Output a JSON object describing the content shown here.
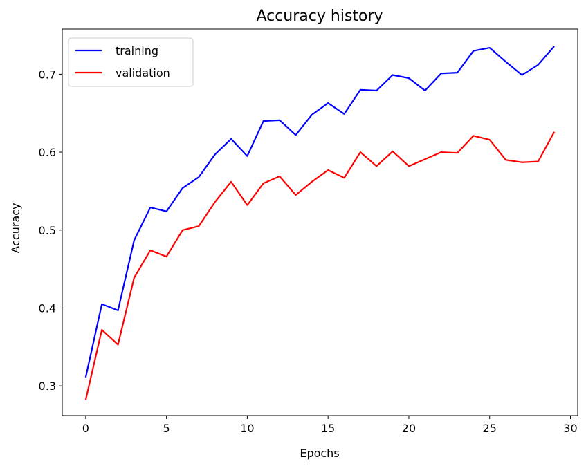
{
  "chart_data": {
    "type": "line",
    "title": "Accuracy history",
    "xlabel": "Epochs",
    "ylabel": "Accuracy",
    "xlim": [
      -1.45,
      30.45
    ],
    "ylim": [
      0.262,
      0.758
    ],
    "xticks": [
      0,
      5,
      10,
      15,
      20,
      25,
      30
    ],
    "yticks": [
      0.3,
      0.4,
      0.5,
      0.6,
      0.7
    ],
    "ytick_labels": [
      "0.3",
      "0.4",
      "0.5",
      "0.6",
      "0.7"
    ],
    "grid": false,
    "legend_position": "top-left",
    "x": [
      0,
      1,
      2,
      3,
      4,
      5,
      6,
      7,
      8,
      9,
      10,
      11,
      12,
      13,
      14,
      15,
      16,
      17,
      18,
      19,
      20,
      21,
      22,
      23,
      24,
      25,
      26,
      27,
      28,
      29
    ],
    "series": [
      {
        "name": "training",
        "color": "#0000ff",
        "values": [
          0.311,
          0.405,
          0.397,
          0.487,
          0.529,
          0.524,
          0.554,
          0.568,
          0.597,
          0.617,
          0.595,
          0.64,
          0.641,
          0.622,
          0.648,
          0.663,
          0.649,
          0.68,
          0.679,
          0.699,
          0.695,
          0.679,
          0.701,
          0.702,
          0.73,
          0.734,
          0.716,
          0.699,
          0.712,
          0.736
        ]
      },
      {
        "name": "validation",
        "color": "#ff0000",
        "values": [
          0.282,
          0.372,
          0.353,
          0.439,
          0.474,
          0.466,
          0.5,
          0.505,
          0.536,
          0.562,
          0.532,
          0.56,
          0.569,
          0.545,
          0.562,
          0.577,
          0.567,
          0.6,
          0.582,
          0.601,
          0.582,
          0.591,
          0.6,
          0.599,
          0.621,
          0.616,
          0.59,
          0.587,
          0.588,
          0.626
        ]
      }
    ]
  }
}
